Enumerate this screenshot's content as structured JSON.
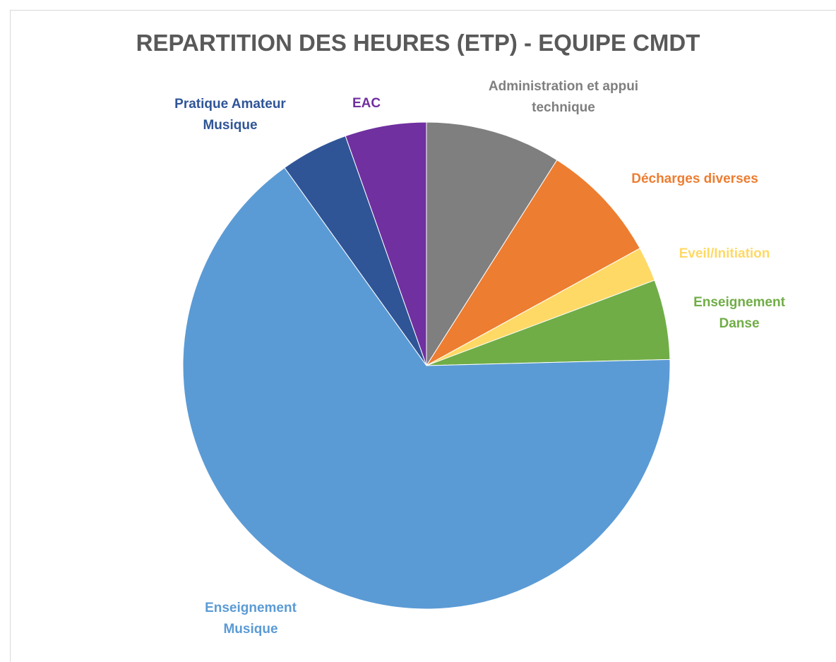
{
  "chart_data": {
    "type": "pie",
    "title": "REPARTITION DES HEURES (ETP) - EQUIPE CMDT",
    "categories": [
      "Administration et appui technique",
      "Décharges diverses",
      "Eveil/Initiation",
      "Enseignement Danse",
      "Enseignement Musique",
      "Pratique Amateur Musique",
      "EAC"
    ],
    "values": [
      9,
      8,
      2.3,
      5.3,
      65.5,
      4.5,
      5.4
    ],
    "colors": [
      "#7f7f7f",
      "#ed7d31",
      "#ffd966",
      "#70ad47",
      "#5b9bd5",
      "#2f5597",
      "#7030a0"
    ]
  }
}
